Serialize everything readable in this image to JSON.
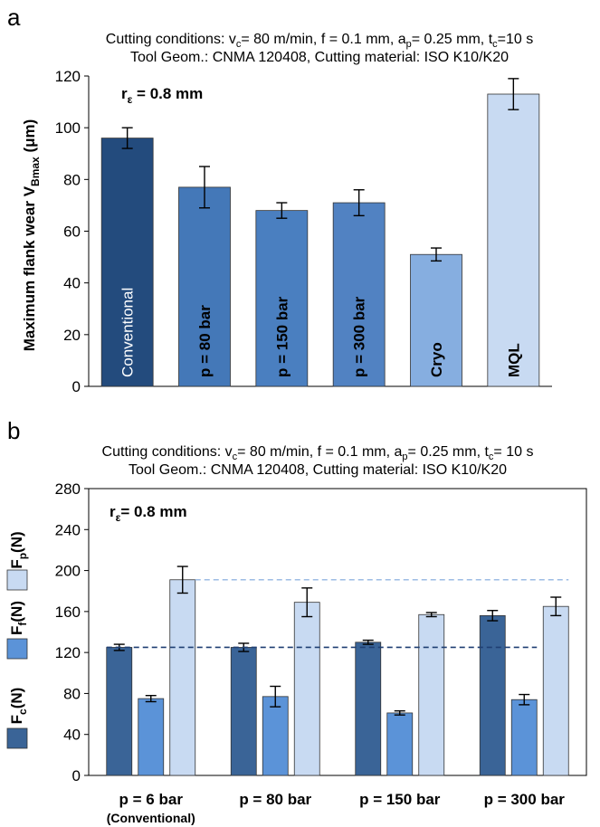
{
  "chart_data": [
    {
      "panel": "a",
      "type": "bar",
      "title_lines": [
        "Cutting conditions: vc= 80 m/min, f = 0.1 mm, ap= 0.25 mm, tc=10 s",
        "Tool Geom.: CNMA 120408, Cutting material: ISO K10/K20"
      ],
      "annotation": "rε = 0.8 mm",
      "ylabel": "Maximum flank wear VBmax (μm)",
      "ylim": [
        0,
        120
      ],
      "yticks": [
        "0",
        "20",
        "40",
        "60",
        "80",
        "100",
        "120"
      ],
      "categories": [
        "Conventional",
        "p = 80 bar",
        "p = 150 bar",
        "p = 300 bar",
        "Cryo",
        "MQL"
      ],
      "values": [
        96,
        77,
        68,
        71,
        51,
        113
      ],
      "errors": [
        4,
        8,
        3,
        5,
        2.5,
        6
      ],
      "colors": [
        "#234b7d",
        "#4478b8",
        "#4a7fc0",
        "#5182c2",
        "#86aee0",
        "#c8daf2"
      ]
    },
    {
      "panel": "b",
      "type": "bar",
      "title_lines": [
        "Cutting conditions: vc= 80 m/min, f = 0.1 mm, ap= 0.25 mm, tc= 10 s",
        "Tool Geom.: CNMA 120408, Cutting material: ISO K10/K20"
      ],
      "annotation": "rε= 0.8 mm",
      "ylim": [
        0,
        280
      ],
      "yticks": [
        "0",
        "40",
        "80",
        "120",
        "160",
        "200",
        "240",
        "280"
      ],
      "categories": [
        "p = 6 bar",
        "p = 80 bar",
        "p = 150 bar",
        "p = 300 bar"
      ],
      "category_sublabel": "(Conventional)",
      "series": [
        {
          "name": "Fc(N)",
          "color": "#3a6497",
          "values": [
            125,
            125,
            130,
            156
          ],
          "errors": [
            3,
            4,
            2,
            5
          ]
        },
        {
          "name": "Ff(N)",
          "color": "#5b93d8",
          "values": [
            75,
            77,
            61,
            74
          ],
          "errors": [
            3,
            10,
            2,
            5
          ]
        },
        {
          "name": "Fp(N)",
          "color": "#c8daf2",
          "values": [
            191,
            169,
            157,
            165
          ],
          "errors": [
            13,
            14,
            2,
            9
          ]
        }
      ],
      "reference_lines": [
        {
          "value": 125,
          "color": "#1f3f73"
        },
        {
          "value": 191,
          "color": "#9cbce4"
        }
      ]
    }
  ],
  "ui": {
    "panel_a": "a",
    "panel_b": "b"
  }
}
